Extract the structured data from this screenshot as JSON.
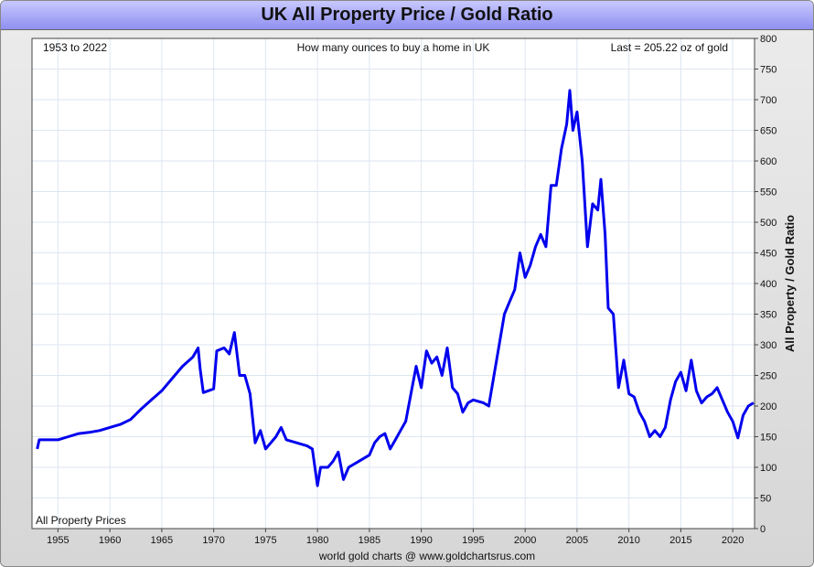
{
  "chart_data": {
    "type": "line",
    "title": "UK All Property Price / Gold Ratio",
    "subtitle": "How many ounces to buy a home in UK",
    "annotations": [
      "1953 to 2022",
      "Last = 205.22 oz of gold",
      "All Property Prices"
    ],
    "ylabel": "All Property / Gold Ratio",
    "footer": "world gold charts @ www.goldchartsrus.com",
    "x": [
      1953.0,
      1953.2,
      1954,
      1955,
      1956,
      1957,
      1958,
      1959,
      1960,
      1961,
      1962,
      1963,
      1964,
      1965,
      1966,
      1967,
      1968,
      1968.5,
      1968.7,
      1969,
      1970,
      1970.3,
      1971,
      1971.5,
      1972,
      1972.5,
      1973,
      1973.5,
      1974,
      1974.5,
      1975,
      1975.5,
      1976,
      1976.5,
      1977,
      1978,
      1979,
      1979.5,
      1980,
      1980.3,
      1981,
      1981.5,
      1982,
      1982.5,
      1983,
      1984,
      1985,
      1985.5,
      1986,
      1986.5,
      1987,
      1987.5,
      1988,
      1988.5,
      1989,
      1989.5,
      1990,
      1990.5,
      1991,
      1991.5,
      1992,
      1992.5,
      1993,
      1993.5,
      1994,
      1994.5,
      1995,
      1996,
      1996.5,
      1997,
      1997.5,
      1998,
      1998.5,
      1999,
      1999.5,
      2000,
      2000.5,
      2001,
      2001.5,
      2002,
      2002.5,
      2003,
      2003.5,
      2004,
      2004.3,
      2004.6,
      2005,
      2005.5,
      2006,
      2006.5,
      2007,
      2007.3,
      2007.7,
      2008,
      2008.5,
      2009,
      2009.5,
      2010,
      2010.5,
      2011,
      2011.5,
      2012,
      2012.5,
      2013,
      2013.5,
      2014,
      2014.5,
      2015,
      2015.5,
      2016,
      2016.5,
      2017,
      2017.5,
      2018,
      2018.5,
      2019,
      2019.5,
      2020,
      2020.5,
      2021,
      2021.5,
      2022
    ],
    "series": [
      {
        "name": "All Property Prices",
        "color": "#0000ee",
        "values": [
          130,
          145,
          145,
          145,
          150,
          155,
          157,
          160,
          165,
          170,
          178,
          195,
          210,
          225,
          245,
          265,
          280,
          295,
          260,
          222,
          228,
          290,
          295,
          285,
          320,
          250,
          250,
          220,
          140,
          160,
          130,
          140,
          150,
          165,
          145,
          140,
          135,
          130,
          70,
          100,
          100,
          110,
          125,
          80,
          100,
          110,
          120,
          140,
          150,
          155,
          130,
          145,
          160,
          175,
          220,
          265,
          230,
          290,
          270,
          280,
          250,
          295,
          230,
          220,
          190,
          205,
          210,
          205,
          200,
          250,
          300,
          350,
          370,
          390,
          450,
          410,
          430,
          460,
          480,
          460,
          560,
          560,
          620,
          660,
          715,
          650,
          680,
          600,
          460,
          530,
          520,
          570,
          480,
          360,
          350,
          230,
          275,
          220,
          215,
          190,
          175,
          150,
          160,
          150,
          165,
          210,
          240,
          255,
          225,
          275,
          225,
          205,
          215,
          220,
          230,
          210,
          190,
          175,
          148,
          185,
          200,
          205.22
        ]
      }
    ],
    "xlim": [
      1952.5,
      2022.1
    ],
    "ylim": [
      0,
      800
    ],
    "xticks": [
      1955,
      1960,
      1965,
      1970,
      1975,
      1980,
      1985,
      1990,
      1995,
      2000,
      2005,
      2010,
      2015,
      2020
    ],
    "yticks": [
      0,
      50,
      100,
      150,
      200,
      250,
      300,
      350,
      400,
      450,
      500,
      550,
      600,
      650,
      700,
      750,
      800
    ],
    "grid": true
  }
}
